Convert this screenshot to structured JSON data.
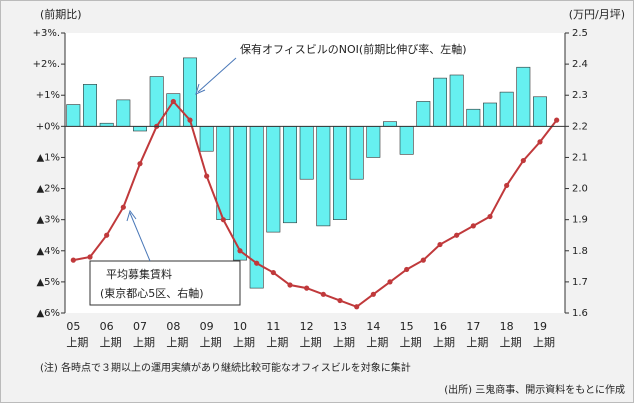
{
  "chart_data": {
    "type": "combo",
    "y_unit_label": "(前期比)",
    "y2_unit_label": "(万円/月坪)",
    "categories": [
      "05",
      null,
      "06",
      null,
      "07",
      null,
      "08",
      null,
      "09",
      null,
      "10",
      null,
      "11",
      null,
      "12",
      null,
      "13",
      null,
      "14",
      null,
      "15",
      null,
      "16",
      null,
      "17",
      null,
      "18",
      null,
      "19",
      null
    ],
    "category_suffix": "上期",
    "series": [
      {
        "type": "bar",
        "axis": "y",
        "color": "#66f0f0",
        "values": [
          0.7,
          1.35,
          0.1,
          0.85,
          -0.15,
          1.6,
          1.05,
          2.2,
          -0.8,
          -3.0,
          -4.3,
          -5.2,
          -3.4,
          -3.1,
          -1.7,
          -3.2,
          -3.0,
          -1.7,
          -1.0,
          0.15,
          -0.9,
          0.8,
          1.55,
          1.65,
          0.55,
          0.75,
          1.1,
          1.9,
          0.95,
          null
        ]
      },
      {
        "type": "line",
        "axis": "y2",
        "color": "#c0393b",
        "values": [
          1.77,
          1.78,
          1.85,
          1.94,
          2.08,
          2.2,
          2.28,
          2.22,
          2.04,
          1.9,
          1.8,
          1.76,
          1.73,
          1.69,
          1.68,
          1.66,
          1.64,
          1.62,
          1.66,
          1.7,
          1.74,
          1.77,
          1.82,
          1.85,
          1.88,
          1.91,
          2.01,
          2.09,
          2.15,
          2.22
        ]
      }
    ],
    "ylim": [
      -6,
      3
    ],
    "yticks": [
      {
        "value": 3,
        "label": "+3%."
      },
      {
        "value": 2,
        "label": "+2%."
      },
      {
        "value": 1,
        "label": "+1%"
      },
      {
        "value": 0,
        "label": "+0%"
      },
      {
        "value": -1,
        "label": "▲1%"
      },
      {
        "value": -2,
        "label": "▲2%"
      },
      {
        "value": -3,
        "label": "▲3%"
      },
      {
        "value": -4,
        "label": "▲4%"
      },
      {
        "value": -5,
        "label": "▲5%"
      },
      {
        "value": -6,
        "label": "▲6%"
      }
    ],
    "y2lim": [
      1.6,
      2.5
    ],
    "y2ticks": [
      2.5,
      2.4,
      2.3,
      2.2,
      2.1,
      {
        "value": 2,
        "label": "2.0"
      },
      1.9,
      1.8,
      1.7,
      1.6
    ],
    "annotations": [
      "保有オフィスビルのNOI(前期比伸び率、左軸)",
      "平均募集賃料",
      "(東京都心5区、右軸)"
    ],
    "notes": [
      "(注) 各時点で３期以上の運用実績があり継続比較可能なオフィスビルを対象に集計",
      "(出所) 三鬼商事、開示資料をもとに作成"
    ]
  }
}
